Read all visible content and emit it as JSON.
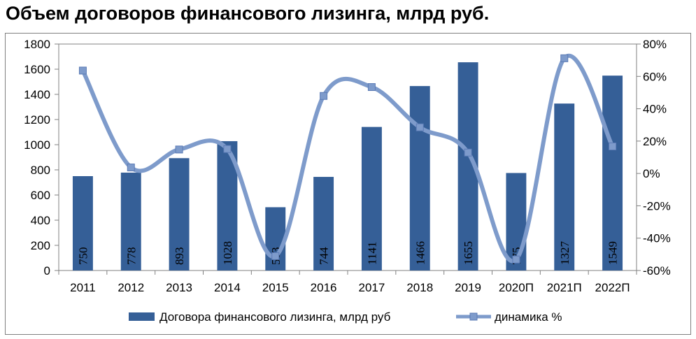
{
  "title": "Объем договоров финансового лизинга, млрд руб.",
  "chart_data": {
    "type": "bar",
    "categories": [
      "2011",
      "2012",
      "2013",
      "2014",
      "2015",
      "2016",
      "2017",
      "2018",
      "2019",
      "2020П",
      "2021П",
      "2022П"
    ],
    "series": [
      {
        "name": "Договора  финансового лизинга, млрд руб",
        "type": "bar",
        "axis": "left",
        "color": "#355f97",
        "values": [
          750,
          778,
          893,
          1028,
          503,
          744,
          1141,
          1466,
          1655,
          775,
          1327,
          1549
        ],
        "labels": [
          "750",
          "778",
          "893",
          "1028",
          "503",
          "744",
          "1141",
          "1466",
          "1655",
          "775",
          "1327",
          "1549"
        ]
      },
      {
        "name": "динамика %",
        "type": "line",
        "axis": "right",
        "color": "#7e9bcb",
        "smooth": true,
        "marker": "square",
        "values": [
          63.6,
          3.7,
          14.8,
          15.1,
          -51.1,
          47.9,
          53.4,
          28.5,
          12.9,
          -53.2,
          71.2,
          16.7
        ]
      }
    ],
    "ylim": [
      0,
      1800
    ],
    "yticks": [
      "0",
      "200",
      "400",
      "600",
      "800",
      "1000",
      "1200",
      "1400",
      "1600",
      "1800"
    ],
    "y2lim": [
      -60,
      80
    ],
    "y2ticks": [
      "-60%",
      "-40%",
      "-20%",
      "0%",
      "20%",
      "40%",
      "60%",
      "80%"
    ],
    "grid": false,
    "legend": "bottom"
  }
}
